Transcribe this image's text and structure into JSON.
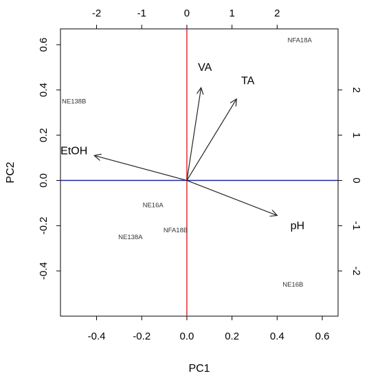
{
  "chart_data": {
    "type": "scatter",
    "title": "",
    "xlabel": "PC1",
    "ylabel": "PC2",
    "xlim": [
      -0.56,
      0.67
    ],
    "ylim": [
      -0.6,
      0.67
    ],
    "x_ticks": [
      -0.4,
      -0.2,
      0.0,
      0.2,
      0.4,
      0.6
    ],
    "x_tick_labels": [
      "-0.4",
      "-0.2",
      "0.0",
      "0.2",
      "0.4",
      "0.6"
    ],
    "y_ticks": [
      -0.4,
      -0.2,
      0.0,
      0.2,
      0.4,
      0.6
    ],
    "y_tick_labels": [
      "-0.4",
      "-0.2",
      "0.0",
      "0.2",
      "0.4",
      "0.6"
    ],
    "top_axis": {
      "ticks": [
        -2,
        -1,
        0,
        1,
        2
      ],
      "tick_labels": [
        "-2",
        "-1",
        "0",
        "1",
        "2"
      ],
      "scale": 0.2
    },
    "right_axis": {
      "ticks": [
        -2,
        -1,
        0,
        1,
        2
      ],
      "tick_labels": [
        "-2",
        "-1",
        "0",
        "1",
        "2"
      ],
      "scale": 0.2
    },
    "samples": [
      {
        "label": "NFA18A",
        "x": 0.5,
        "y": 0.62
      },
      {
        "label": "NE138B",
        "x": -0.5,
        "y": 0.35
      },
      {
        "label": "NE16A",
        "x": -0.15,
        "y": -0.11
      },
      {
        "label": "NFA18B",
        "x": -0.05,
        "y": -0.22
      },
      {
        "label": "NE138A",
        "x": -0.25,
        "y": -0.25
      },
      {
        "label": "NE16B",
        "x": 0.47,
        "y": -0.46
      }
    ],
    "loadings": [
      {
        "name": "VA",
        "x": 0.063,
        "y": 0.41,
        "lx": 0.08,
        "ly": 0.5
      },
      {
        "name": "TA",
        "x": 0.22,
        "y": 0.36,
        "lx": 0.27,
        "ly": 0.44
      },
      {
        "name": "EtOH",
        "x": -0.41,
        "y": 0.11,
        "lx": -0.5,
        "ly": 0.13
      },
      {
        "name": "pH",
        "x": 0.4,
        "y": -0.155,
        "lx": 0.49,
        "ly": -0.2
      }
    ],
    "colors": {
      "vertical_line": "#e8262a",
      "horizontal_line": "#1f24a8",
      "arrows": "#222222",
      "frame": "#000000"
    },
    "grid": false,
    "legend": "none"
  }
}
